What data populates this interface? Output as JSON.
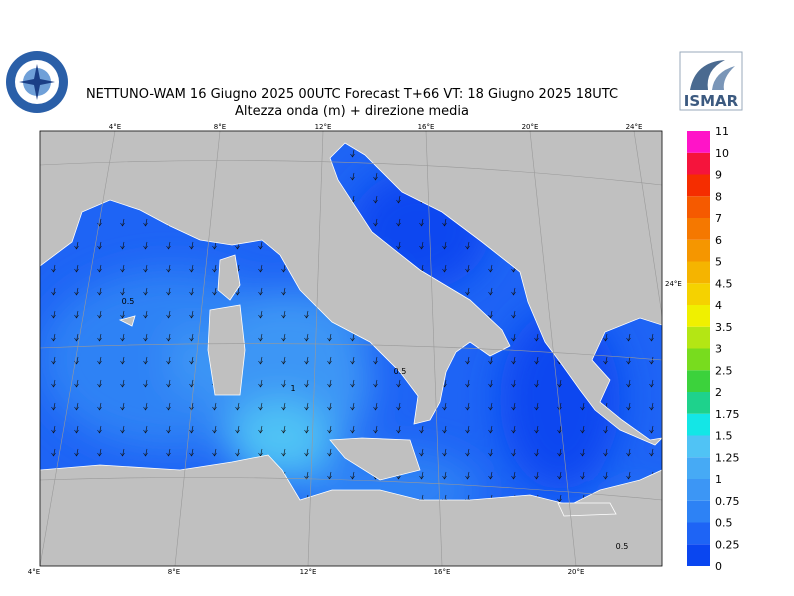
{
  "header": {
    "title": "NETTUNO-WAM  16  Giugno  2025 00UTC Forecast T+66 VT: 18  Giugno  2025 18UTC",
    "subtitle": "Altezza onda (m) + direzione media",
    "logo_text": "ISMAR"
  },
  "map": {
    "top_labels": [
      "4°E",
      "8°E",
      "12°E",
      "16°E",
      "20°E",
      "24°E"
    ],
    "bottom_labels": [
      "4°E",
      "8°E",
      "12°E",
      "16°E",
      "20°E"
    ],
    "right_label": "24°E",
    "contour_labels": [
      "0.5",
      "0.5",
      "1",
      "0.5"
    ]
  },
  "colorbar": {
    "levels": [
      0,
      0.25,
      0.5,
      0.75,
      1,
      1.25,
      1.5,
      1.75,
      2,
      2.5,
      3,
      3.5,
      4,
      4.5,
      5,
      6,
      7,
      8,
      9,
      10,
      11
    ],
    "colors": [
      "#0a46f0",
      "#1e64f5",
      "#2d82f5",
      "#3c96f5",
      "#46aaf5",
      "#50c3f5",
      "#14e6e6",
      "#1ed28c",
      "#3cd23c",
      "#78dc1e",
      "#b4e614",
      "#f0f000",
      "#f5d200",
      "#f5b400",
      "#f59600",
      "#f57800",
      "#f55a00",
      "#f52d00",
      "#f5143c",
      "#ff14c8"
    ]
  }
}
